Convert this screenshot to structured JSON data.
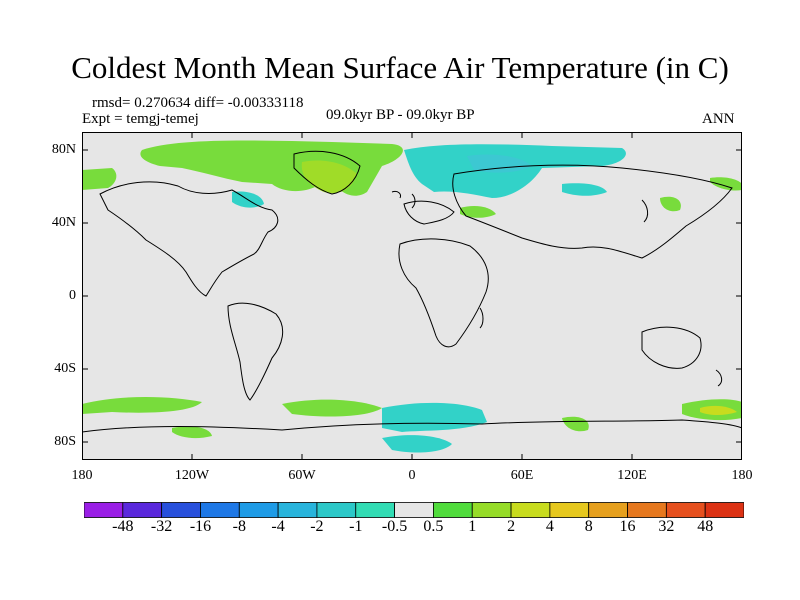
{
  "title": "Coldest Month Mean Surface Air Temperature (in C)",
  "stats": "rmsd= 0.270634 diff= -0.00333118",
  "experiment": "Expt = temgj-temej",
  "period": "09.0kyr BP - 09.0kyr BP",
  "season": "ANN",
  "lat_ticks": [
    "80N",
    "40N",
    "0",
    "40S",
    "80S"
  ],
  "lon_ticks": [
    "180",
    "120W",
    "60W",
    "0",
    "60E",
    "120E",
    "180"
  ],
  "colorbar": {
    "labels": [
      "-48",
      "-32",
      "-16",
      "-8",
      "-4",
      "-2",
      "-1",
      "-0.5",
      "0.5",
      "1",
      "2",
      "4",
      "8",
      "16",
      "32",
      "48"
    ],
    "colors": [
      "#9a1ee6",
      "#5a28dc",
      "#2850dc",
      "#1e78e6",
      "#1e9be6",
      "#28b4dc",
      "#2cc8c8",
      "#32dcb4",
      "#e6e6e6",
      "#50dc3c",
      "#96dc28",
      "#c8dc1e",
      "#e6c81e",
      "#e6a01e",
      "#e6781e",
      "#e6501e",
      "#dc3214"
    ]
  },
  "map_colors": {
    "background": "#e6e6e6",
    "positive_light": "#78dc3c",
    "positive_mid": "#a0dc28",
    "negative_light": "#32d2c8",
    "negative_mid": "#3cc8d2",
    "coast": "#000000"
  }
}
